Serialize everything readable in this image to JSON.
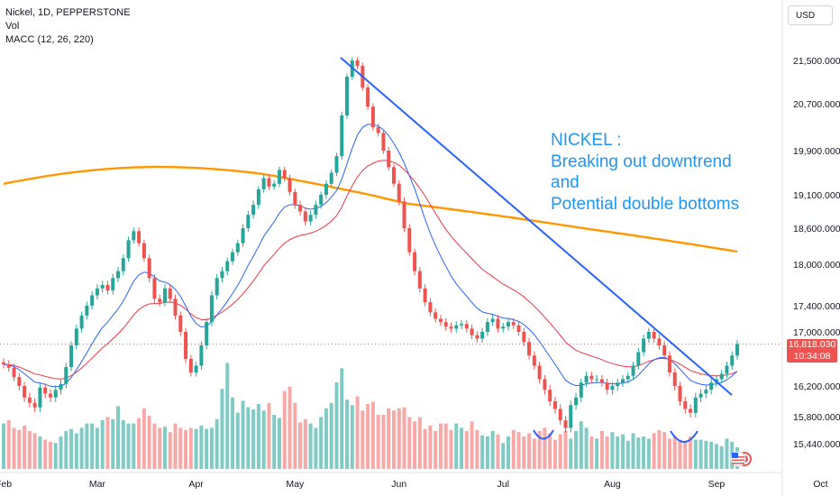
{
  "legend": {
    "line1": "Nickel, 1D, PEPPERSTONE",
    "line2": "Vol",
    "line3": "MACC (12, 26, 220)"
  },
  "currency": "USD",
  "annotation": {
    "lines": [
      "NICKEL :",
      "Breaking out downtrend",
      "and",
      "Potential double bottoms"
    ]
  },
  "price_tag": {
    "price": "16,818.030",
    "countdown": "10:34:08"
  },
  "colors": {
    "up": "#26a69a",
    "down": "#ef5350",
    "vol_up": "#80cbc4",
    "vol_down": "#f7a9a7",
    "ma_fast": "#2962ff",
    "ma_mid": "#f23645",
    "ma_slow": "#ff9800",
    "trendline": "#2962ff",
    "annotation": "#2196f3"
  },
  "chart_data": {
    "type": "candlestick",
    "symbol": "Nickel",
    "timeframe": "1D",
    "source": "PEPPERSTONE",
    "x_ticks": [
      "Feb",
      "Mar",
      "Apr",
      "May",
      "Jun",
      "Jul",
      "Aug",
      "Sep",
      "Oct"
    ],
    "y_ticks": [
      "21,500.000",
      "20,700.000",
      "19,900.000",
      "19,100.000",
      "18,600.000",
      "18,000.000",
      "17,400.000",
      "17,000.000",
      "16,200.000",
      "15,800.000",
      "15,440.000"
    ],
    "y_tick_values": [
      21500,
      20700,
      19900,
      19100,
      18600,
      18000,
      17400,
      17000,
      16200,
      15800,
      15440
    ],
    "last_price": 16818.03,
    "close": [
      16520,
      16470,
      16330,
      16200,
      16050,
      15980,
      15920,
      16180,
      16100,
      16050,
      16150,
      16230,
      16480,
      16800,
      17050,
      17250,
      17400,
      17550,
      17650,
      17700,
      17620,
      17800,
      17900,
      18100,
      18400,
      18550,
      18350,
      18100,
      17800,
      17500,
      17450,
      17650,
      17500,
      17250,
      17000,
      16600,
      16400,
      16500,
      16800,
      17150,
      17550,
      17800,
      17900,
      18050,
      18200,
      18350,
      18600,
      18800,
      18950,
      19200,
      19400,
      19250,
      19300,
      19550,
      19400,
      19150,
      18950,
      18850,
      18700,
      18800,
      18950,
      19100,
      19300,
      19500,
      19800,
      20500,
      21200,
      21500,
      21400,
      21000,
      20650,
      20300,
      20200,
      19900,
      19600,
      19300,
      19000,
      18600,
      18200,
      17900,
      17650,
      17450,
      17300,
      17200,
      17150,
      17080,
      17050,
      17100,
      17120,
      17050,
      16950,
      16900,
      17000,
      17150,
      17200,
      17050,
      17080,
      17150,
      17100,
      17000,
      16850,
      16650,
      16500,
      16300,
      16150,
      16000,
      15900,
      15750,
      15650,
      15950,
      16050,
      16250,
      16350,
      16300,
      16300,
      16250,
      16150,
      16200,
      16250,
      16300,
      16350,
      16500,
      16700,
      16900,
      17000,
      16900,
      16800,
      16650,
      16400,
      16200,
      16000,
      15900,
      15850,
      16050,
      16100,
      16150,
      16250,
      16300,
      16380,
      16500,
      16650,
      16818
    ],
    "ma_fast_period": 12,
    "ma_mid_period": 26,
    "ma_slow_period": 220,
    "volume_relative": [
      0.42,
      0.45,
      0.38,
      0.36,
      0.4,
      0.35,
      0.33,
      0.3,
      0.27,
      0.25,
      0.24,
      0.3,
      0.35,
      0.37,
      0.33,
      0.38,
      0.42,
      0.42,
      0.38,
      0.45,
      0.48,
      0.46,
      0.58,
      0.45,
      0.42,
      0.42,
      0.47,
      0.56,
      0.49,
      0.42,
      0.38,
      0.39,
      0.34,
      0.42,
      0.38,
      0.36,
      0.38,
      0.37,
      0.4,
      0.37,
      0.38,
      0.46,
      0.74,
      0.98,
      0.66,
      0.52,
      0.63,
      0.57,
      0.55,
      0.6,
      0.54,
      0.61,
      0.5,
      0.47,
      0.72,
      0.76,
      0.61,
      0.43,
      0.46,
      0.42,
      0.38,
      0.48,
      0.56,
      0.61,
      0.8,
      0.93,
      0.64,
      0.59,
      0.67,
      0.54,
      0.6,
      0.62,
      0.5,
      0.5,
      0.56,
      0.54,
      0.56,
      0.57,
      0.48,
      0.44,
      0.48,
      0.37,
      0.4,
      0.35,
      0.42,
      0.42,
      0.36,
      0.42,
      0.38,
      0.35,
      0.44,
      0.36,
      0.31,
      0.3,
      0.35,
      0.32,
      0.24,
      0.3,
      0.36,
      0.34,
      0.3,
      0.33,
      0.28,
      0.35,
      0.38,
      0.33,
      0.27,
      0.32,
      0.35,
      0.28,
      0.35,
      0.44,
      0.38,
      0.3,
      0.28,
      0.35,
      0.3,
      0.34,
      0.3,
      0.32,
      0.26,
      0.33,
      0.29,
      0.3,
      0.28,
      0.33,
      0.36,
      0.34,
      0.28,
      0.3,
      0.27,
      0.26,
      0.3,
      0.27,
      0.27,
      0.26,
      0.25,
      0.23,
      0.21,
      0.28,
      0.25,
      0.2
    ]
  }
}
